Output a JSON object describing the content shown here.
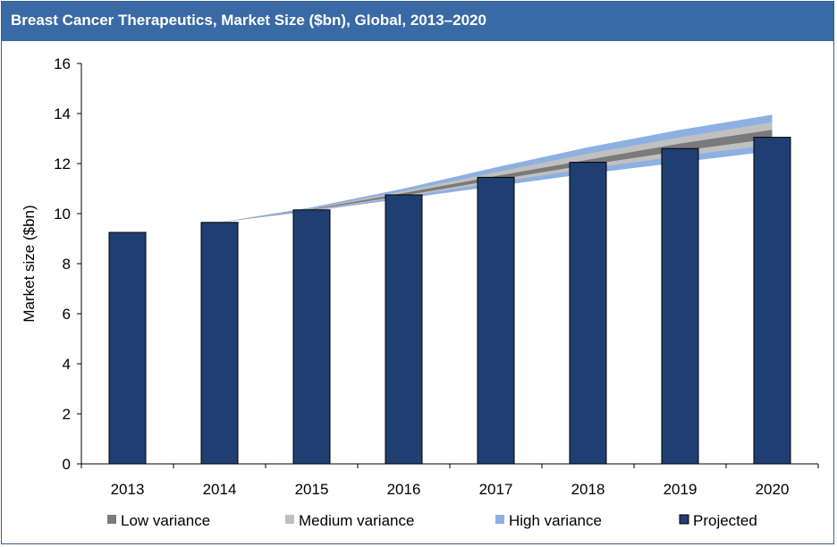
{
  "chart_data": {
    "type": "bar",
    "title": "Breast Cancer Therapeutics, Market Size ($bn), Global, 2013–2020",
    "xlabel": "",
    "ylabel": "Market size ($bn)",
    "ylim": [
      0,
      16
    ],
    "yticks": [
      "0",
      "2",
      "4",
      "6",
      "8",
      "10",
      "12",
      "14",
      "16"
    ],
    "categories": [
      "2013",
      "2014",
      "2015",
      "2016",
      "2017",
      "2018",
      "2019",
      "2020"
    ],
    "series": [
      {
        "name": "Projected",
        "type": "bar",
        "color": "#1f3f73",
        "values": [
          9.25,
          9.65,
          10.15,
          10.75,
          11.45,
          12.05,
          12.6,
          13.05
        ]
      }
    ],
    "variance_bands": [
      {
        "name": "High variance",
        "color": "#8db0e3",
        "lower": [
          9.25,
          9.65,
          10.1,
          10.6,
          11.1,
          11.6,
          12.05,
          12.5
        ],
        "upper": [
          9.25,
          9.65,
          10.25,
          11.0,
          11.85,
          12.65,
          13.35,
          13.95
        ]
      },
      {
        "name": "Medium variance",
        "color": "#c0c0c0",
        "lower": [
          9.25,
          9.65,
          10.12,
          10.68,
          11.25,
          11.8,
          12.3,
          12.75
        ],
        "upper": [
          9.25,
          9.65,
          10.2,
          10.9,
          11.65,
          12.4,
          13.05,
          13.65
        ]
      },
      {
        "name": "Low variance",
        "color": "#7a7a7a",
        "lower": [
          9.25,
          9.65,
          10.15,
          10.72,
          11.35,
          11.95,
          12.5,
          13.0
        ],
        "upper": [
          9.25,
          9.65,
          10.18,
          10.82,
          11.5,
          12.15,
          12.8,
          13.35
        ]
      }
    ],
    "legend": {
      "position": "bottom",
      "items": [
        {
          "label": "Low variance",
          "color": "#7a7a7a"
        },
        {
          "label": "Medium variance",
          "color": "#c0c0c0"
        },
        {
          "label": "High variance",
          "color": "#8db0e3"
        },
        {
          "label": "Projected",
          "color": "#1f3f73"
        }
      ]
    },
    "grid": false
  }
}
